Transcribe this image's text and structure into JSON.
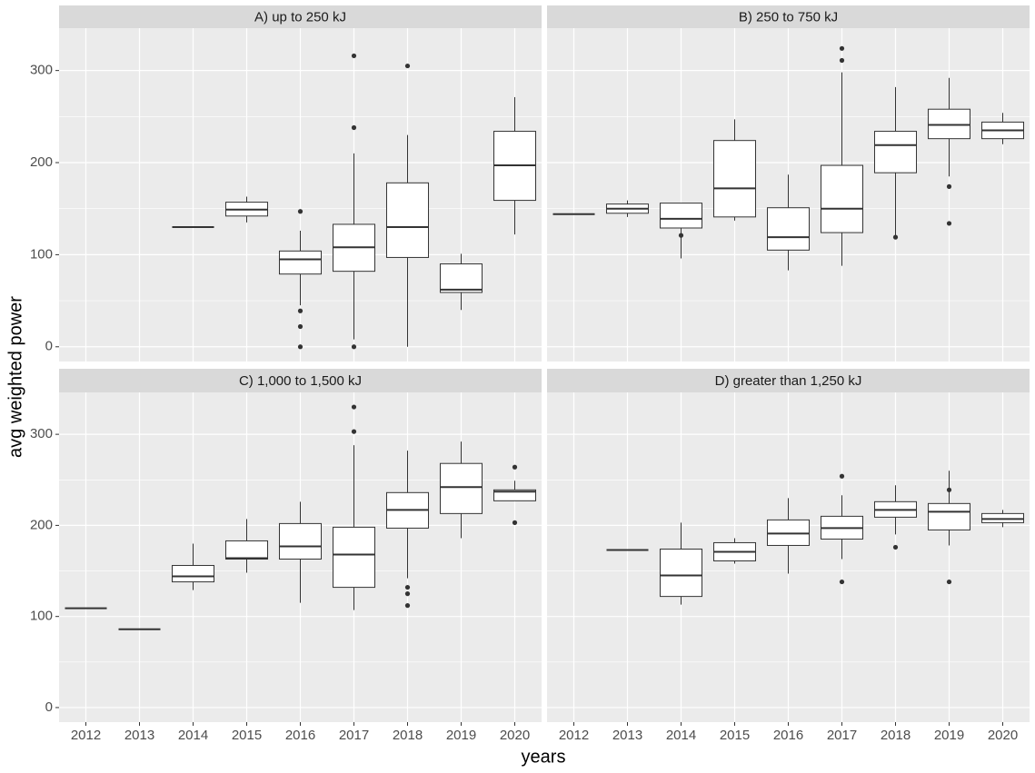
{
  "chart_data": [
    {
      "type": "box",
      "title": "A) up to 250 kJ",
      "categories": [
        "2012",
        "2013",
        "2014",
        "2015",
        "2016",
        "2017",
        "2018",
        "2019",
        "2020"
      ],
      "boxes": [
        null,
        null,
        [
          130,
          130,
          130,
          130,
          130
        ],
        [
          135,
          142,
          149,
          157,
          163
        ],
        [
          45,
          79,
          95,
          104,
          126
        ],
        [
          8,
          82,
          108,
          133,
          210
        ],
        [
          0,
          97,
          130,
          178,
          230
        ],
        [
          40,
          59,
          62,
          90,
          101
        ],
        [
          122,
          159,
          197,
          234,
          271
        ]
      ],
      "outliers": [
        [],
        [],
        [],
        [],
        [
          0,
          22,
          39,
          147
        ],
        [
          0,
          238,
          316
        ],
        [
          305
        ],
        [],
        []
      ],
      "ylim": [
        -16,
        346
      ],
      "yticks": [
        0,
        100,
        200,
        300
      ],
      "minor_yticks": [
        50,
        150,
        250
      ],
      "grid": true
    },
    {
      "type": "box",
      "title": "B) 250 to 750 kJ",
      "categories": [
        "2012",
        "2013",
        "2014",
        "2015",
        "2016",
        "2017",
        "2018",
        "2019",
        "2020"
      ],
      "boxes": [
        [
          144,
          144,
          144,
          144,
          144
        ],
        [
          141,
          145,
          150,
          155,
          159
        ],
        [
          96,
          129,
          139,
          156,
          156
        ],
        [
          137,
          141,
          172,
          224,
          247
        ],
        [
          83,
          105,
          119,
          151,
          187
        ],
        [
          88,
          124,
          150,
          197,
          298
        ],
        [
          120,
          189,
          219,
          234,
          282
        ],
        [
          185,
          226,
          241,
          258,
          292
        ],
        [
          220,
          226,
          235,
          244,
          254
        ]
      ],
      "outliers": [
        [],
        [],
        [
          121
        ],
        [],
        [],
        [
          311,
          324
        ],
        [
          119
        ],
        [
          134,
          174
        ],
        []
      ],
      "ylim": [
        -16,
        346
      ],
      "yticks": [
        0,
        100,
        200,
        300
      ],
      "minor_yticks": [
        50,
        150,
        250
      ],
      "grid": true
    },
    {
      "type": "box",
      "title": "C) 1,000 to 1,500 kJ",
      "categories": [
        "2012",
        "2013",
        "2014",
        "2015",
        "2016",
        "2017",
        "2018",
        "2019",
        "2020"
      ],
      "boxes": [
        [
          109,
          109,
          109,
          109,
          109
        ],
        [
          86,
          86,
          86,
          86,
          86
        ],
        [
          129,
          138,
          144,
          156,
          180
        ],
        [
          148,
          163,
          164,
          183,
          207
        ],
        [
          115,
          163,
          177,
          202,
          226
        ],
        [
          107,
          132,
          168,
          198,
          288
        ],
        [
          142,
          197,
          217,
          236,
          282
        ],
        [
          186,
          213,
          242,
          268,
          292
        ],
        [
          227,
          227,
          237,
          239,
          249
        ]
      ],
      "outliers": [
        [],
        [],
        [],
        [],
        [],
        [
          303,
          330
        ],
        [
          112,
          125,
          132
        ],
        [],
        [
          203,
          264
        ]
      ],
      "ylim": [
        -16,
        346
      ],
      "yticks": [
        0,
        100,
        200,
        300
      ],
      "minor_yticks": [
        50,
        150,
        250
      ],
      "grid": true
    },
    {
      "type": "box",
      "title": "D) greater than 1,250 kJ",
      "categories": [
        "2012",
        "2013",
        "2014",
        "2015",
        "2016",
        "2017",
        "2018",
        "2019",
        "2020"
      ],
      "boxes": [
        null,
        [
          173,
          173,
          173,
          173,
          173
        ],
        [
          113,
          122,
          145,
          174,
          203
        ],
        [
          158,
          161,
          171,
          181,
          186
        ],
        [
          147,
          178,
          191,
          206,
          230
        ],
        [
          163,
          185,
          197,
          210,
          233
        ],
        [
          190,
          209,
          217,
          226,
          244
        ],
        [
          178,
          195,
          215,
          224,
          260
        ],
        [
          198,
          203,
          207,
          213,
          217
        ]
      ],
      "outliers": [
        [],
        [],
        [],
        [],
        [],
        [
          138,
          254
        ],
        [
          176
        ],
        [
          138,
          239
        ],
        []
      ],
      "ylim": [
        -16,
        346
      ],
      "yticks": [
        0,
        100,
        200,
        300
      ],
      "minor_yticks": [
        50,
        150,
        250
      ],
      "grid": true
    }
  ],
  "x_label": "years",
  "y_label": "avg weighted power"
}
